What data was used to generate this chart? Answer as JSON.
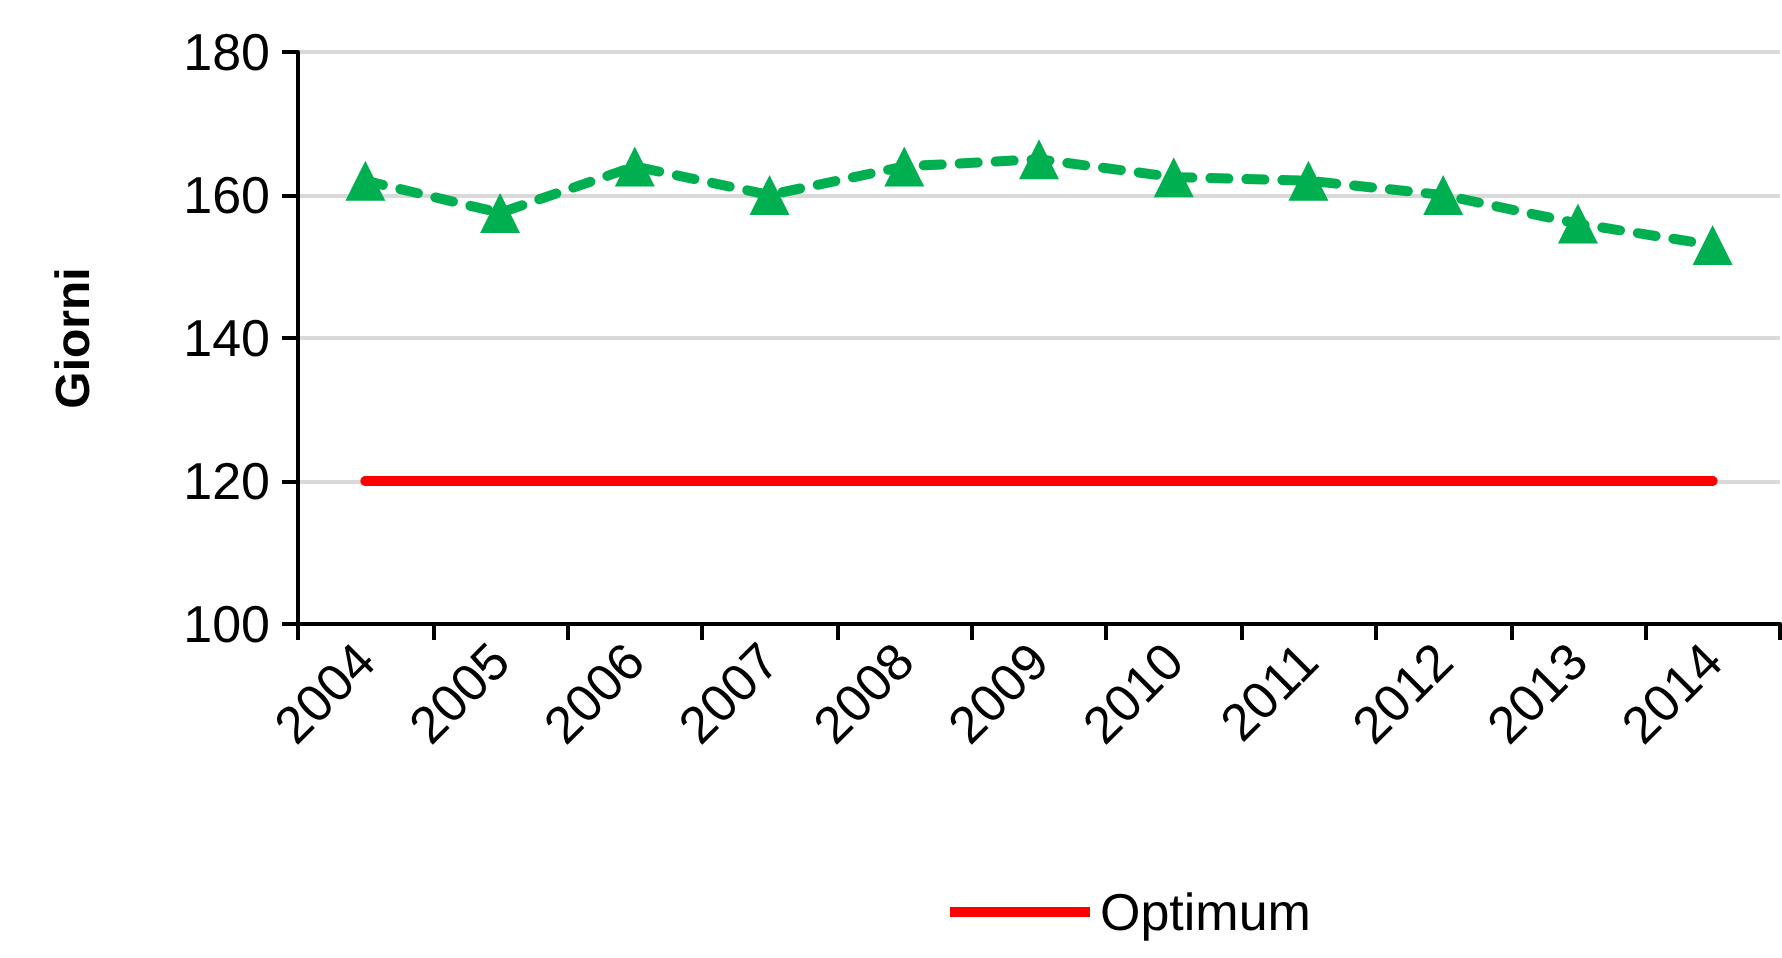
{
  "chart_data": {
    "type": "line",
    "ylabel": "Giorni",
    "categories": [
      "2004",
      "2005",
      "2006",
      "2007",
      "2008",
      "2009",
      "2010",
      "2011",
      "2012",
      "2013",
      "2014"
    ],
    "series": [
      {
        "color": "#00b050",
        "marker": "triangle",
        "line_style": "dashed",
        "values": [
          162,
          157.5,
          164,
          160,
          164,
          165,
          162.5,
          162,
          160,
          156,
          153
        ]
      },
      {
        "name": "Optimum",
        "color": "#ff0000",
        "marker": "none",
        "line_style": "solid",
        "values": [
          120,
          120,
          120,
          120,
          120,
          120,
          120,
          120,
          120,
          120,
          120
        ]
      }
    ],
    "ylim": [
      100,
      180
    ],
    "yticks": [
      100,
      120,
      140,
      160,
      180
    ],
    "grid": "y",
    "legend": "bottom"
  }
}
